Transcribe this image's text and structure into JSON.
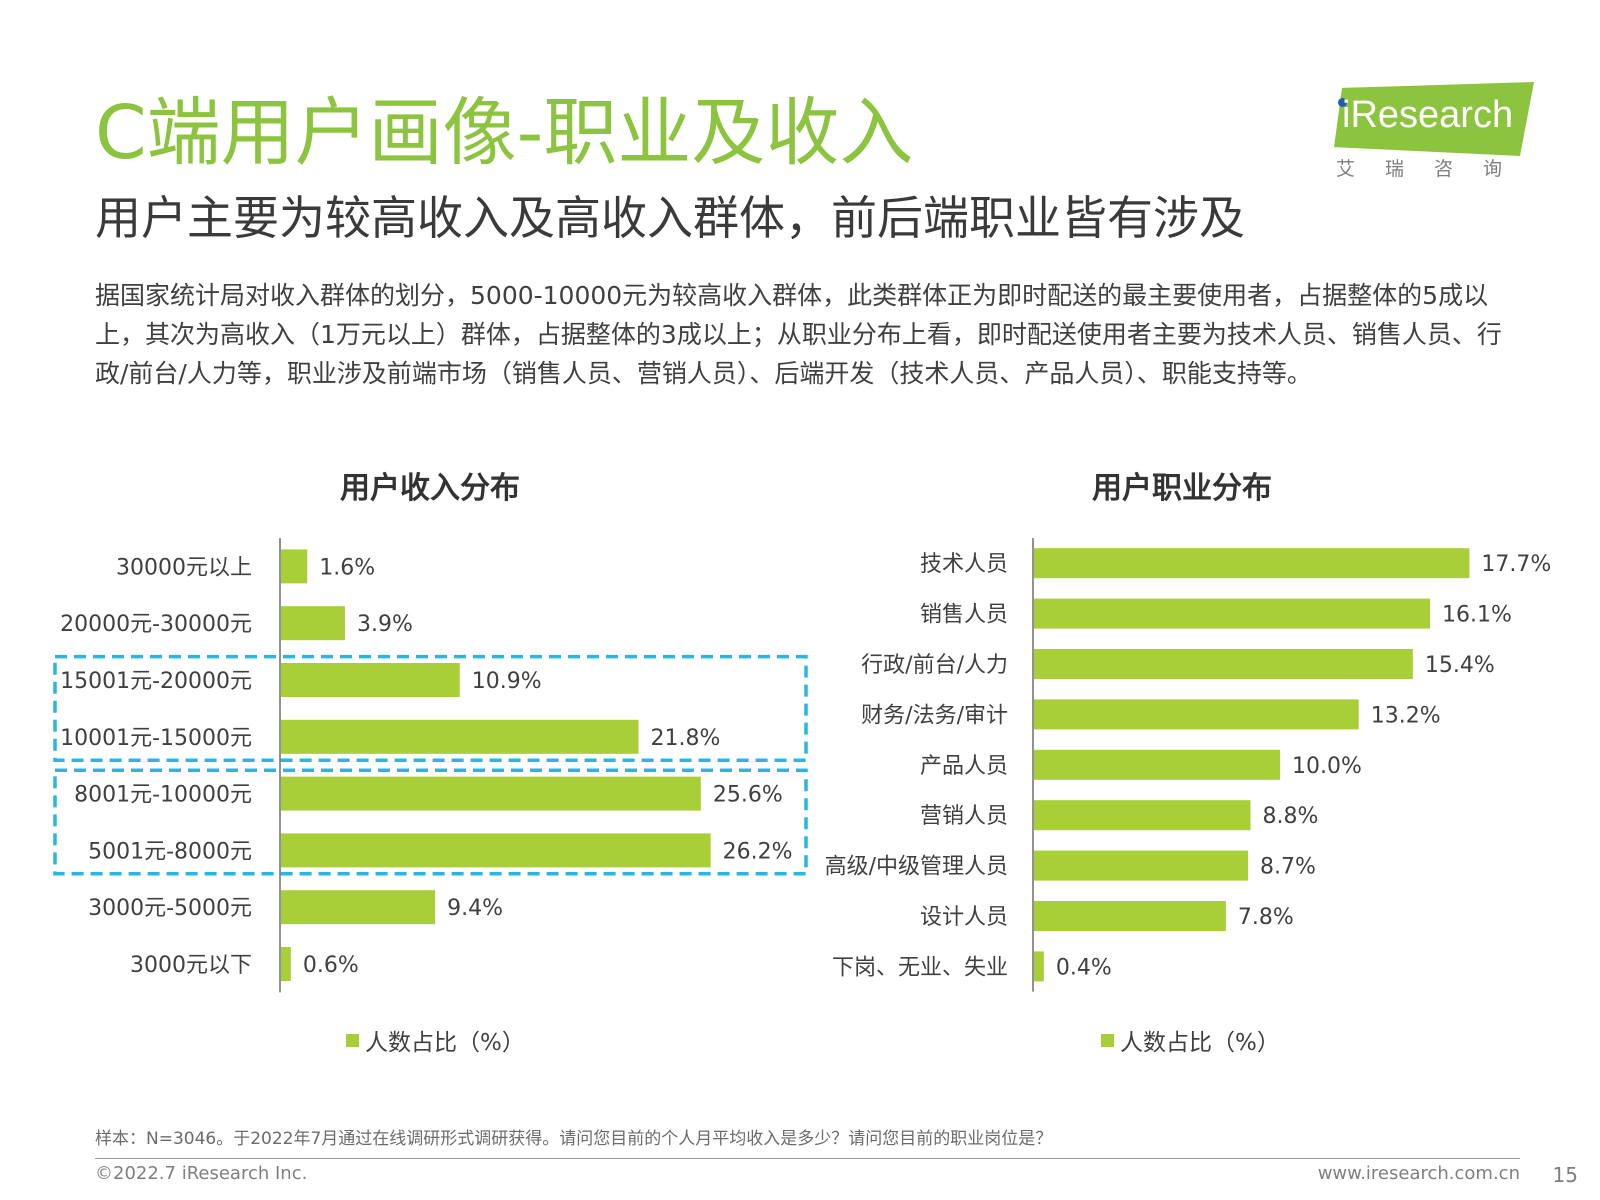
{
  "header": {
    "title": "C端用户画像-职业及收入",
    "subtitle": "用户主要为较高收入及高收入群体，前后端职业皆有涉及",
    "body": "据国家统计局对收入群体的划分，5000-10000元为较高收入群体，此类群体正为即时配送的最主要使用者，占据整体的5成以上，其次为高收入（1万元以上）群体，占据整体的3成以上；从职业分布上看，即时配送使用者主要为技术人员、销售人员、行政/前台/人力等，职业涉及前端市场（销售人员、营销人员）、后端开发（技术人员、产品人员）、职能支持等。"
  },
  "logo": {
    "brand": "iResearch",
    "sub": "艾瑞咨询",
    "colors": {
      "mark": "#8cc43f",
      "dot": "#1e5fa8"
    }
  },
  "chart_data": [
    {
      "type": "bar",
      "orientation": "horizontal",
      "title": "用户收入分布",
      "categories": [
        "30000元以上",
        "20000元-30000元",
        "15001元-20000元",
        "10001元-15000元",
        "8001元-10000元",
        "5001元-8000元",
        "3000元-5000元",
        "3000元以下"
      ],
      "series": [
        {
          "name": "人数占比（%）",
          "values": [
            1.6,
            3.9,
            10.9,
            21.8,
            25.6,
            26.2,
            9.4,
            0.6
          ]
        }
      ],
      "value_labels": [
        "1.6%",
        "3.9%",
        "10.9%",
        "21.8%",
        "25.6%",
        "26.2%",
        "9.4%",
        "0.6%"
      ],
      "highlight_groups": [
        [
          2,
          3
        ],
        [
          4,
          5
        ]
      ],
      "legend": "bottom",
      "bar_color": "#a8cf38",
      "highlight_color": "#29b6e0"
    },
    {
      "type": "bar",
      "orientation": "horizontal",
      "title": "用户职业分布",
      "categories": [
        "技术人员",
        "销售人员",
        "行政/前台/人力",
        "财务/法务/审计",
        "产品人员",
        "营销人员",
        "高级/中级管理人员",
        "设计人员",
        "下岗、无业、失业"
      ],
      "series": [
        {
          "name": "人数占比（%）",
          "values": [
            17.7,
            16.1,
            15.4,
            13.2,
            10.0,
            8.8,
            8.7,
            7.8,
            0.4
          ]
        }
      ],
      "value_labels": [
        "17.7%",
        "16.1%",
        "15.4%",
        "13.2%",
        "10.0%",
        "8.8%",
        "8.7%",
        "7.8%",
        "0.4%"
      ],
      "legend": "bottom",
      "bar_color": "#a8cf38"
    }
  ],
  "footer": {
    "note": "样本：N=3046。于2022年7月通过在线调研形式调研获得。请问您目前的个人月平均收入是多少？请问您目前的职业岗位是？",
    "copyright": "©2022.7 iResearch Inc.",
    "site": "www.iresearch.com.cn",
    "page": "15"
  }
}
